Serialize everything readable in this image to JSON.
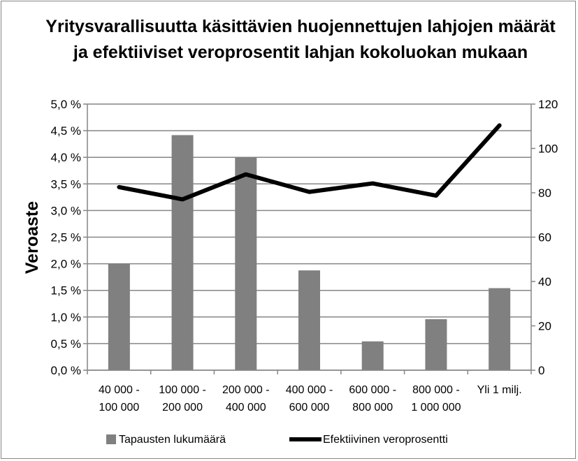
{
  "chart_data": {
    "type": "bar+line",
    "title": "Yritysvarallisuutta käsittävien huojennettujen lahjojen määrät ja efektiiviset veroprosentit lahjan kokoluokan mukaan",
    "ylabel": "Veroaste",
    "categories": [
      [
        "40 000 -",
        "100 000"
      ],
      [
        "100 000 -",
        "200 000"
      ],
      [
        "200 000 -",
        "400 000"
      ],
      [
        "400 000 -",
        "600 000"
      ],
      [
        "600 000 -",
        "800 000"
      ],
      [
        "800 000 -",
        "1 000 000"
      ],
      [
        "Yli 1 milj.",
        ""
      ]
    ],
    "y_left": {
      "range": [
        0,
        5.0
      ],
      "step": 0.5,
      "ticks": [
        "0,0 %",
        "0,5 %",
        "1,0 %",
        "1,5 %",
        "2,0 %",
        "2,5 %",
        "3,0 %",
        "3,5 %",
        "4,0 %",
        "4,5 %",
        "5,0 %"
      ]
    },
    "y_right": {
      "range": [
        0,
        120
      ],
      "step": 20,
      "ticks": [
        "0",
        "20",
        "40",
        "60",
        "80",
        "100",
        "120"
      ]
    },
    "grid": true,
    "legend_position": "bottom",
    "series": [
      {
        "name": "Tapausten lukumäärä",
        "type": "bar",
        "axis": "right",
        "color": "#808080",
        "values": [
          48,
          106,
          96,
          45,
          13,
          23,
          37
        ]
      },
      {
        "name": "Efektiivinen veroprosentti",
        "type": "line",
        "axis": "left",
        "color": "#000000",
        "values": [
          3.44,
          3.21,
          3.68,
          3.35,
          3.51,
          3.28,
          4.6
        ]
      }
    ]
  }
}
